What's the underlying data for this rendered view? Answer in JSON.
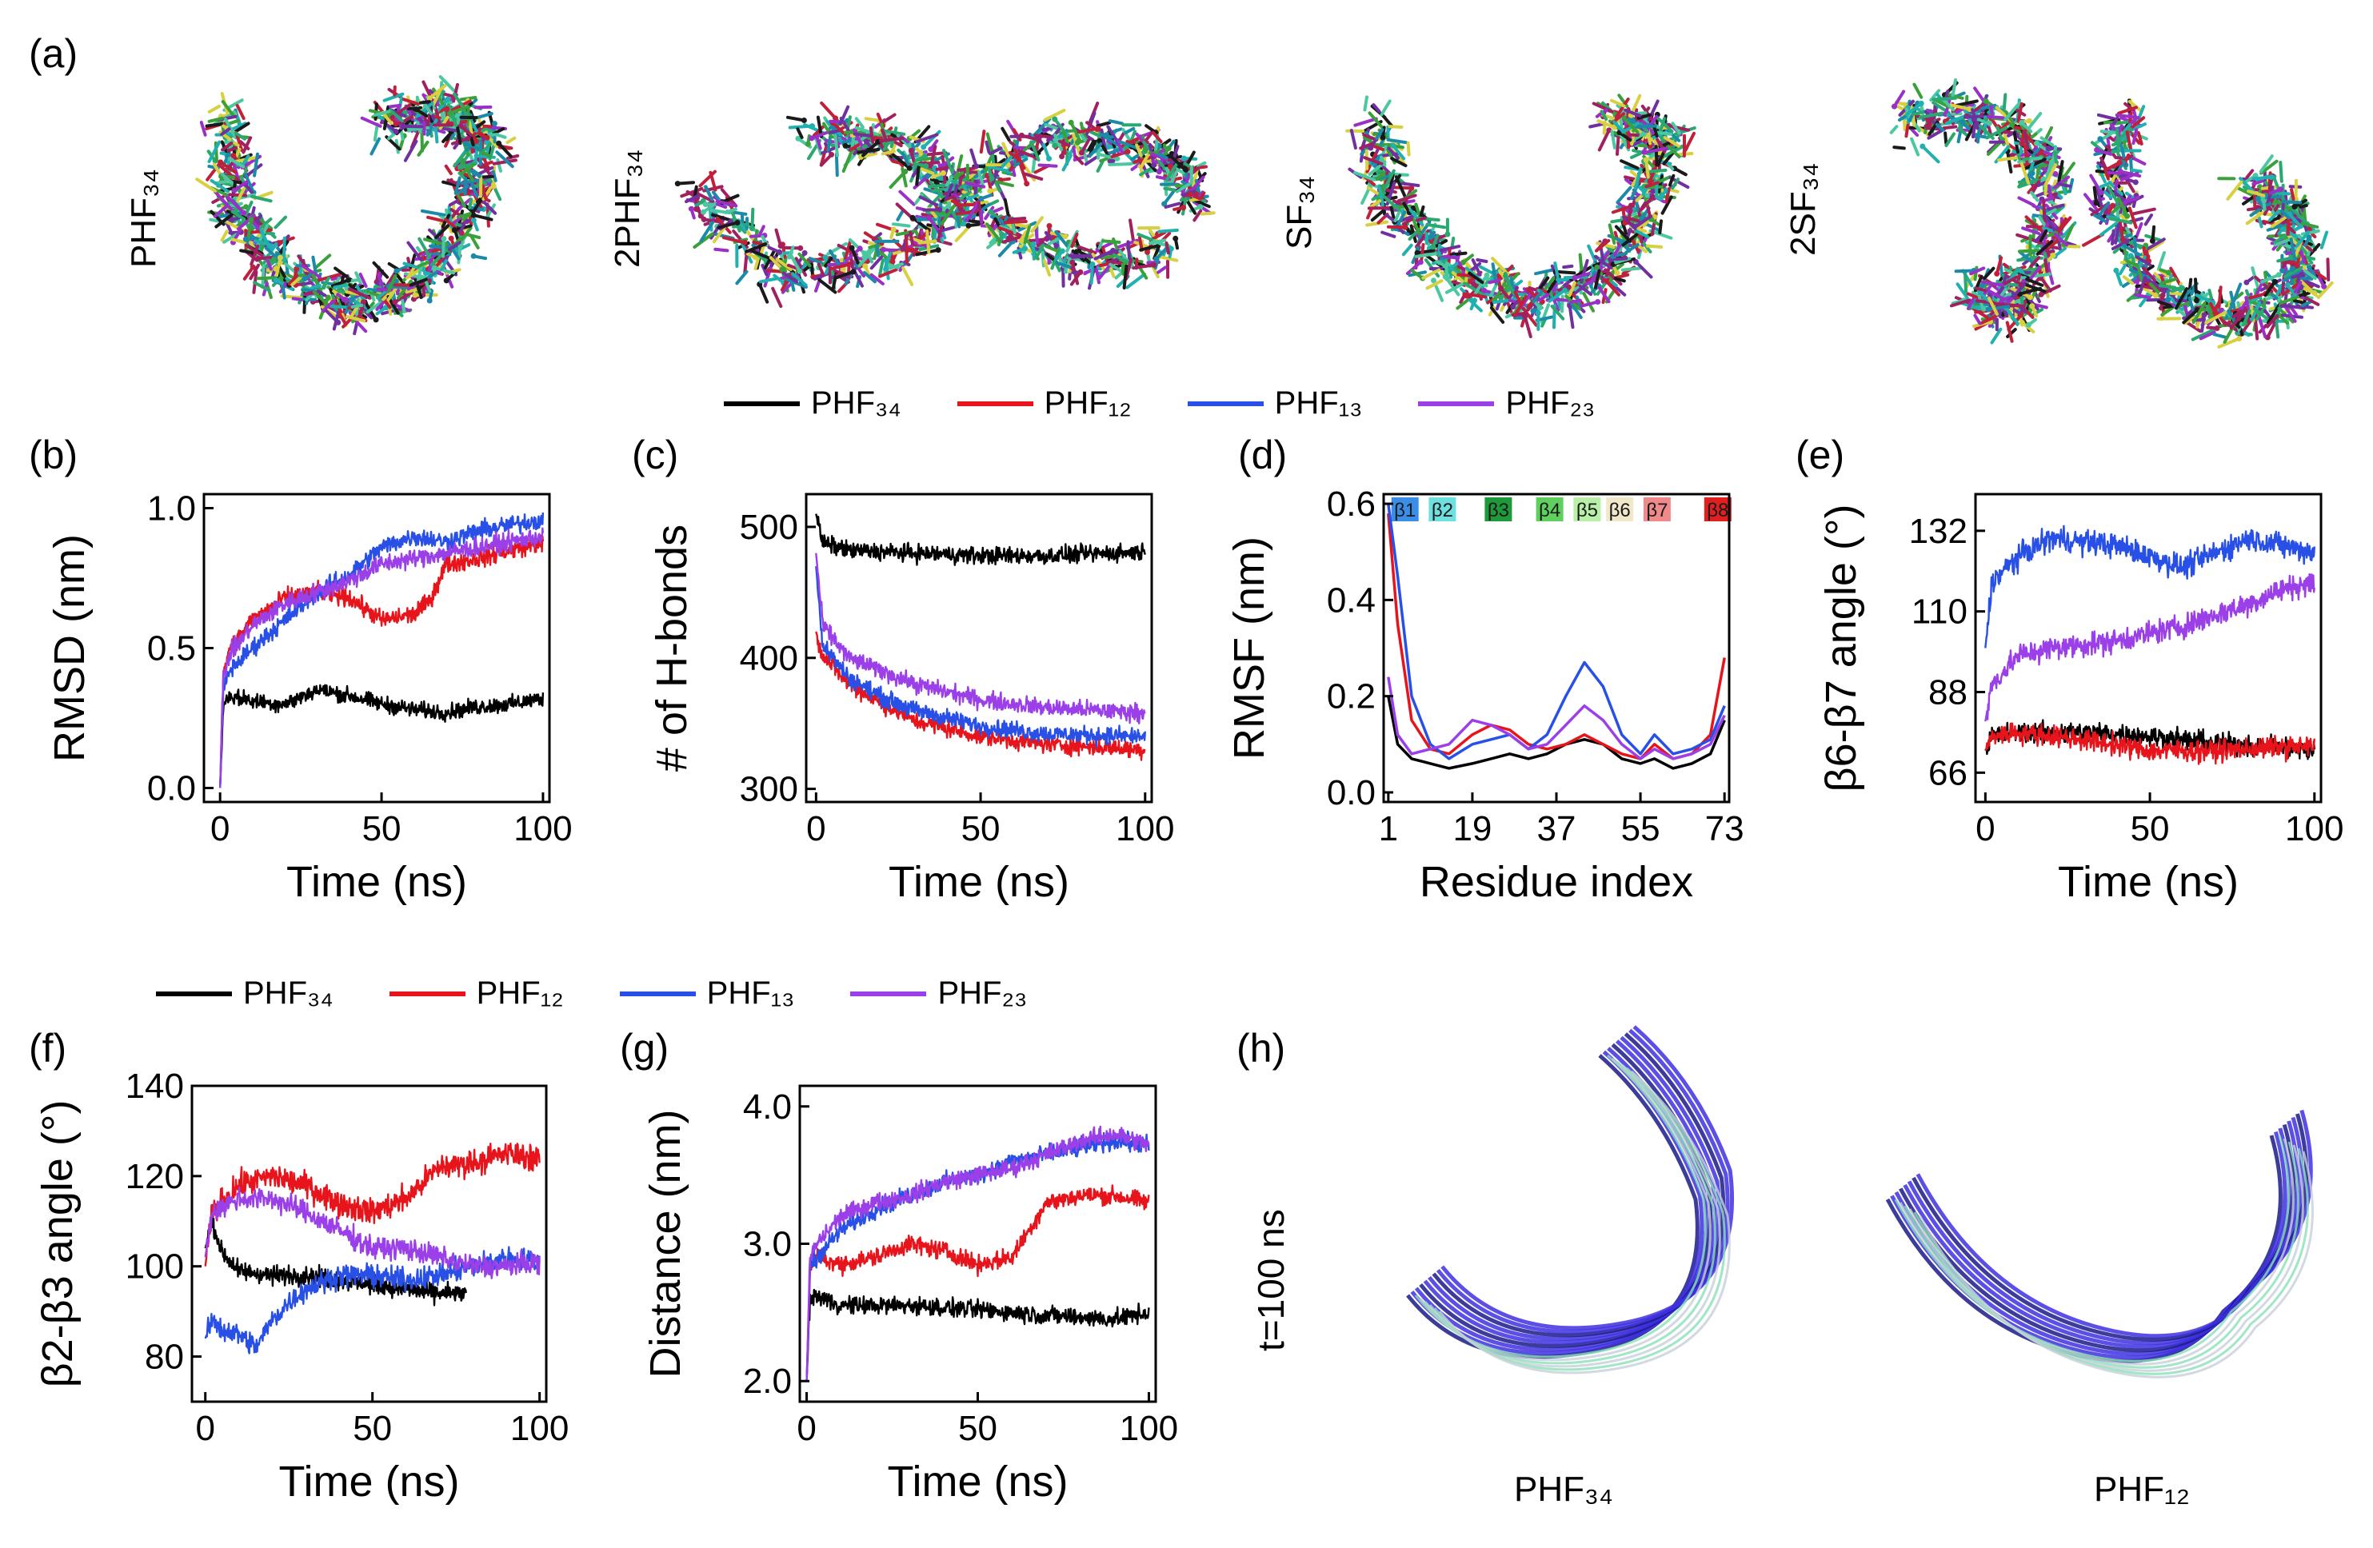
{
  "panel_labels": {
    "a": "(a)",
    "b": "(b)",
    "c": "(c)",
    "d": "(d)",
    "e": "(e)",
    "f": "(f)",
    "g": "(g)",
    "h": "(h)"
  },
  "structures": [
    {
      "label": "PHF₃₄"
    },
    {
      "label": "2PHF₃₄"
    },
    {
      "label": "SF₃₄"
    },
    {
      "label": "2SF₃₄"
    }
  ],
  "legend": [
    {
      "name": "PHF₃₄",
      "color": "#000000"
    },
    {
      "name": "PHF₁₂",
      "color": "#e8141c"
    },
    {
      "name": "PHF₁₃",
      "color": "#2850e6"
    },
    {
      "name": "PHF₂₃",
      "color": "#9b40e8"
    }
  ],
  "panel_h": {
    "time_label": "t=100 ns",
    "captions": [
      "PHF₃₄",
      "PHF₁₂"
    ]
  },
  "chart_data": [
    {
      "id": "b",
      "type": "line",
      "xlabel": "Time (ns)",
      "ylabel": "RMSD (nm)",
      "xlim": [
        -5,
        102
      ],
      "ylim": [
        -0.05,
        1.05
      ],
      "xticks": [
        0,
        50,
        100
      ],
      "xticklabels": [
        "0",
        "50",
        "100"
      ],
      "yticks": [
        0.0,
        0.5,
        1.0
      ],
      "yticklabels": [
        "0.0",
        "0.5",
        "1.0"
      ],
      "series": [
        {
          "name": "PHF₃₄",
          "color": "#000000",
          "noise": 0.035,
          "x": [
            0,
            1,
            3,
            10,
            20,
            30,
            40,
            50,
            60,
            70,
            80,
            90,
            100
          ],
          "y": [
            0.0,
            0.3,
            0.33,
            0.31,
            0.3,
            0.35,
            0.33,
            0.3,
            0.28,
            0.27,
            0.29,
            0.3,
            0.32
          ]
        },
        {
          "name": "PHF₁₂",
          "color": "#e8141c",
          "noise": 0.04,
          "x": [
            0,
            1,
            3,
            10,
            20,
            30,
            40,
            50,
            60,
            65,
            70,
            80,
            90,
            100
          ],
          "y": [
            0.0,
            0.42,
            0.5,
            0.6,
            0.68,
            0.7,
            0.68,
            0.6,
            0.62,
            0.67,
            0.8,
            0.82,
            0.85,
            0.88
          ]
        },
        {
          "name": "PHF₁₃",
          "color": "#2850e6",
          "noise": 0.04,
          "x": [
            0,
            1,
            3,
            10,
            20,
            30,
            40,
            50,
            60,
            70,
            80,
            90,
            100
          ],
          "y": [
            0.0,
            0.35,
            0.42,
            0.5,
            0.6,
            0.7,
            0.76,
            0.86,
            0.9,
            0.88,
            0.92,
            0.94,
            0.96
          ]
        },
        {
          "name": "PHF₂₃",
          "color": "#9b40e8",
          "noise": 0.04,
          "x": [
            0,
            1,
            3,
            10,
            20,
            30,
            40,
            50,
            60,
            70,
            80,
            90,
            100
          ],
          "y": [
            0.0,
            0.4,
            0.48,
            0.58,
            0.66,
            0.7,
            0.74,
            0.8,
            0.82,
            0.84,
            0.86,
            0.88,
            0.9
          ]
        }
      ]
    },
    {
      "id": "c",
      "type": "line",
      "xlabel": "Time (ns)",
      "ylabel": "# of H-bonds",
      "xlim": [
        -3,
        102
      ],
      "ylim": [
        290,
        525
      ],
      "xticks": [
        0,
        50,
        100
      ],
      "xticklabels": [
        "0",
        "50",
        "100"
      ],
      "yticks": [
        300,
        400,
        500
      ],
      "yticklabels": [
        "300",
        "400",
        "500"
      ],
      "series": [
        {
          "name": "PHF₃₄",
          "color": "#000000",
          "noise": 8,
          "x": [
            0,
            2,
            10,
            30,
            50,
            70,
            90,
            100
          ],
          "y": [
            510,
            488,
            482,
            480,
            478,
            478,
            480,
            481
          ]
        },
        {
          "name": "PHF₁₂",
          "color": "#e8141c",
          "noise": 8,
          "x": [
            0,
            2,
            10,
            20,
            30,
            50,
            70,
            100
          ],
          "y": [
            420,
            402,
            380,
            365,
            352,
            340,
            334,
            330
          ]
        },
        {
          "name": "PHF₁₃",
          "color": "#2850e6",
          "noise": 8,
          "x": [
            0,
            2,
            10,
            20,
            30,
            50,
            70,
            100
          ],
          "y": [
            470,
            410,
            385,
            370,
            360,
            348,
            342,
            340
          ]
        },
        {
          "name": "PHF₂₃",
          "color": "#9b40e8",
          "noise": 8,
          "x": [
            0,
            2,
            10,
            20,
            30,
            50,
            70,
            100
          ],
          "y": [
            480,
            425,
            400,
            390,
            380,
            368,
            362,
            358
          ]
        }
      ]
    },
    {
      "id": "d",
      "type": "line",
      "xlabel": "Residue index",
      "ylabel": "RMSF (nm)",
      "xlim": [
        0,
        74
      ],
      "ylim": [
        -0.02,
        0.62
      ],
      "xticks": [
        1,
        19,
        37,
        55,
        73
      ],
      "xticklabels": [
        "1",
        "19",
        "37",
        "55",
        "73"
      ],
      "yticks": [
        0.0,
        0.2,
        0.4,
        0.6
      ],
      "yticklabels": [
        "0.0",
        "0.2",
        "0.4",
        "0.6"
      ],
      "strands": [
        {
          "label": "β1",
          "color": "#3a8ee8",
          "x": 2
        },
        {
          "label": "β2",
          "color": "#6fe0e0",
          "x": 10
        },
        {
          "label": "β3",
          "color": "#1e9a3a",
          "x": 22
        },
        {
          "label": "β4",
          "color": "#5fd060",
          "x": 33
        },
        {
          "label": "β5",
          "color": "#b8f0a8",
          "x": 41
        },
        {
          "label": "β6",
          "color": "#f0e8c8",
          "x": 48
        },
        {
          "label": "β7",
          "color": "#f08a8a",
          "x": 56
        },
        {
          "label": "β8",
          "color": "#e02020",
          "x": 69
        }
      ],
      "series": [
        {
          "name": "PHF₃₄",
          "color": "#000000",
          "noise": 0,
          "x": [
            1,
            3,
            6,
            10,
            14,
            19,
            23,
            27,
            31,
            35,
            39,
            43,
            47,
            51,
            55,
            58,
            62,
            66,
            70,
            73
          ],
          "y": [
            0.2,
            0.1,
            0.07,
            0.06,
            0.05,
            0.06,
            0.07,
            0.08,
            0.07,
            0.08,
            0.1,
            0.11,
            0.1,
            0.07,
            0.06,
            0.07,
            0.05,
            0.06,
            0.08,
            0.15
          ]
        },
        {
          "name": "PHF₁₂",
          "color": "#e8141c",
          "noise": 0,
          "x": [
            1,
            3,
            6,
            10,
            14,
            19,
            23,
            27,
            31,
            35,
            39,
            43,
            47,
            51,
            55,
            58,
            62,
            66,
            70,
            73
          ],
          "y": [
            0.58,
            0.35,
            0.15,
            0.09,
            0.08,
            0.12,
            0.14,
            0.13,
            0.1,
            0.09,
            0.1,
            0.12,
            0.1,
            0.08,
            0.07,
            0.1,
            0.07,
            0.08,
            0.12,
            0.28
          ]
        },
        {
          "name": "PHF₁₃",
          "color": "#2850e6",
          "noise": 0,
          "x": [
            1,
            3,
            6,
            10,
            14,
            19,
            23,
            27,
            31,
            35,
            39,
            43,
            47,
            51,
            55,
            58,
            62,
            66,
            70,
            73
          ],
          "y": [
            0.6,
            0.45,
            0.2,
            0.1,
            0.07,
            0.1,
            0.11,
            0.12,
            0.09,
            0.12,
            0.2,
            0.27,
            0.22,
            0.12,
            0.08,
            0.12,
            0.08,
            0.09,
            0.11,
            0.18
          ]
        },
        {
          "name": "PHF₂₃",
          "color": "#9b40e8",
          "noise": 0,
          "x": [
            1,
            3,
            6,
            10,
            14,
            19,
            23,
            27,
            31,
            35,
            39,
            43,
            47,
            51,
            55,
            58,
            62,
            66,
            70,
            73
          ],
          "y": [
            0.24,
            0.12,
            0.08,
            0.09,
            0.1,
            0.15,
            0.14,
            0.12,
            0.09,
            0.1,
            0.14,
            0.18,
            0.15,
            0.1,
            0.07,
            0.09,
            0.07,
            0.08,
            0.1,
            0.16
          ]
        }
      ]
    },
    {
      "id": "e",
      "type": "line",
      "xlabel": "Time (ns)",
      "ylabel": "β6-β7 angle (°)",
      "xlim": [
        -3,
        102
      ],
      "ylim": [
        58,
        142
      ],
      "xticks": [
        0,
        50,
        100
      ],
      "xticklabels": [
        "0",
        "50",
        "100"
      ],
      "yticks": [
        66,
        88,
        110,
        132
      ],
      "yticklabels": [
        "66",
        "88",
        "110",
        "132"
      ],
      "series": [
        {
          "name": "PHF₃₄",
          "color": "#000000",
          "noise": 3.5,
          "x": [
            0,
            2,
            10,
            30,
            50,
            70,
            90,
            100
          ],
          "y": [
            72,
            76,
            77,
            77,
            76,
            74,
            73,
            72
          ]
        },
        {
          "name": "PHF₁₂",
          "color": "#e8141c",
          "noise": 3.5,
          "x": [
            0,
            2,
            10,
            30,
            50,
            70,
            90,
            100
          ],
          "y": [
            72,
            76,
            77,
            75,
            72,
            72,
            73,
            73
          ]
        },
        {
          "name": "PHF₁₃",
          "color": "#2850e6",
          "noise": 4,
          "x": [
            0,
            2,
            10,
            20,
            40,
            60,
            80,
            90,
            100
          ],
          "y": [
            100,
            118,
            125,
            130,
            128,
            122,
            130,
            128,
            126
          ]
        },
        {
          "name": "PHF₂₃",
          "color": "#9b40e8",
          "noise": 4,
          "x": [
            0,
            2,
            10,
            20,
            40,
            60,
            80,
            90,
            100
          ],
          "y": [
            80,
            90,
            98,
            100,
            102,
            106,
            112,
            116,
            118
          ]
        }
      ]
    },
    {
      "id": "f",
      "type": "line",
      "xlabel": "Time (ns)",
      "ylabel": "β2-β3 angle (°)",
      "xlim": [
        -4,
        102
      ],
      "ylim": [
        70,
        140
      ],
      "xticks": [
        0,
        50,
        100
      ],
      "xticklabels": [
        "0",
        "50",
        "100"
      ],
      "yticks": [
        80,
        100,
        120,
        140
      ],
      "yticklabels": [
        "80",
        "100",
        "120",
        "140"
      ],
      "series": [
        {
          "name": "PHF₃₄",
          "color": "#000000",
          "noise": 2.5,
          "x": [
            0,
            2,
            5,
            10,
            20,
            30,
            40,
            50,
            60,
            70,
            78
          ],
          "y": [
            104,
            110,
            103,
            99,
            98,
            98,
            97,
            96,
            95,
            94,
            94
          ]
        },
        {
          "name": "PHF₁₂",
          "color": "#e8141c",
          "noise": 3.5,
          "x": [
            0,
            2,
            10,
            20,
            30,
            40,
            50,
            60,
            70,
            80,
            90,
            100
          ],
          "y": [
            100,
            112,
            118,
            120,
            118,
            114,
            112,
            115,
            122,
            123,
            125,
            124
          ]
        },
        {
          "name": "PHF₁₃",
          "color": "#2850e6",
          "noise": 3,
          "x": [
            0,
            2,
            5,
            10,
            15,
            20,
            25,
            30,
            40,
            50,
            60,
            70,
            80,
            90,
            100
          ],
          "y": [
            84,
            88,
            86,
            85,
            82,
            88,
            92,
            95,
            98,
            98,
            97,
            98,
            100,
            102,
            101
          ]
        },
        {
          "name": "PHF₂₃",
          "color": "#9b40e8",
          "noise": 3,
          "x": [
            0,
            2,
            10,
            20,
            30,
            40,
            50,
            60,
            70,
            80,
            90,
            100
          ],
          "y": [
            102,
            112,
            115,
            115,
            112,
            108,
            104,
            104,
            102,
            100,
            100,
            101
          ]
        }
      ]
    },
    {
      "id": "g",
      "type": "line",
      "xlabel": "Time (ns)",
      "ylabel": "Distance (nm)",
      "xlim": [
        -2,
        102
      ],
      "ylim": [
        1.85,
        4.15
      ],
      "xticks": [
        0,
        50,
        100
      ],
      "xticklabels": [
        "0",
        "50",
        "100"
      ],
      "yticks": [
        2.0,
        3.0,
        4.0
      ],
      "yticklabels": [
        "2.0",
        "3.0",
        "4.0"
      ],
      "series": [
        {
          "name": "PHF₃₄",
          "color": "#000000",
          "noise": 0.08,
          "x": [
            0,
            1,
            3,
            10,
            30,
            50,
            70,
            90,
            100
          ],
          "y": [
            2.0,
            2.6,
            2.62,
            2.55,
            2.55,
            2.52,
            2.48,
            2.45,
            2.5
          ]
        },
        {
          "name": "PHF₁₂",
          "color": "#e8141c",
          "noise": 0.08,
          "x": [
            0,
            1,
            3,
            10,
            20,
            30,
            40,
            50,
            60,
            65,
            70,
            80,
            90,
            100
          ],
          "y": [
            2.0,
            2.8,
            2.9,
            2.85,
            2.9,
            3.0,
            2.95,
            2.85,
            2.9,
            3.1,
            3.3,
            3.35,
            3.35,
            3.3
          ]
        },
        {
          "name": "PHF₁₃",
          "color": "#2850e6",
          "noise": 0.08,
          "x": [
            0,
            1,
            3,
            10,
            20,
            30,
            40,
            50,
            60,
            70,
            80,
            90,
            100
          ],
          "y": [
            2.0,
            2.85,
            2.9,
            3.1,
            3.25,
            3.35,
            3.45,
            3.5,
            3.6,
            3.65,
            3.7,
            3.75,
            3.72
          ]
        },
        {
          "name": "PHF₂₃",
          "color": "#9b40e8",
          "noise": 0.08,
          "x": [
            0,
            1,
            3,
            10,
            20,
            30,
            40,
            50,
            60,
            70,
            80,
            90,
            100
          ],
          "y": [
            2.0,
            2.9,
            3.0,
            3.2,
            3.3,
            3.35,
            3.45,
            3.5,
            3.55,
            3.65,
            3.75,
            3.8,
            3.72
          ]
        }
      ]
    }
  ]
}
